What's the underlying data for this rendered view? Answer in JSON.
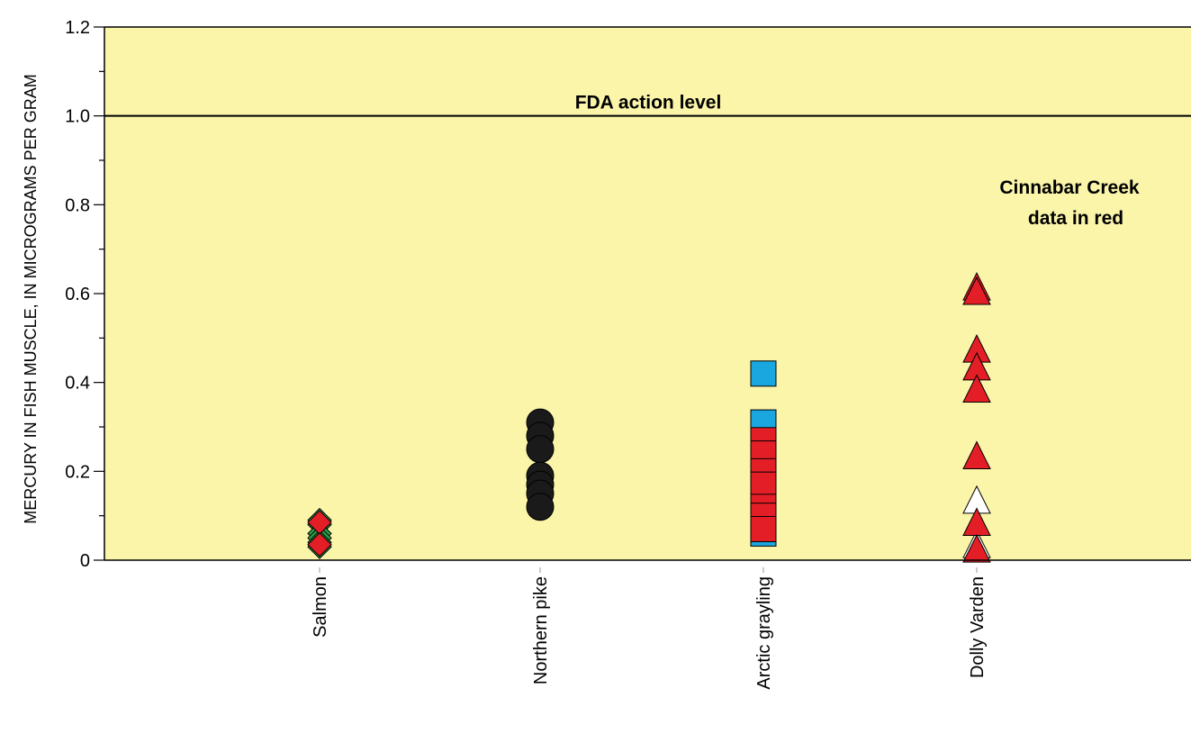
{
  "chart_data": {
    "type": "scatter",
    "ylabel": "MERCURY IN FISH MUSCLE, IN MICROGRAMS PER GRAM",
    "xlabel": "",
    "ylim": [
      0,
      1.2
    ],
    "y_ticks": [
      "0",
      "0.2",
      "0.4",
      "0.6",
      "0.8",
      "1.0",
      "1.2"
    ],
    "categories": [
      "Salmon",
      "Northern pike",
      "Arctic grayling",
      "Dolly Varden"
    ],
    "grid": false,
    "background_color": "#fbf5aa",
    "reference_line": {
      "value": 1.0,
      "label": "FDA action level"
    },
    "annotation": {
      "lines": [
        "Cinnabar Creek",
        "data in red"
      ]
    },
    "series": [
      {
        "category": "Salmon",
        "marker": "diamond",
        "points": [
          {
            "y": 0.09,
            "color": "#2e9e48"
          },
          {
            "y": 0.08,
            "color": "#2e9e48"
          },
          {
            "y": 0.06,
            "color": "#2e9e48"
          },
          {
            "y": 0.05,
            "color": "#2e9e48"
          },
          {
            "y": 0.04,
            "color": "#2e9e48"
          },
          {
            "y": 0.03,
            "color": "#2e9e48"
          },
          {
            "y": 0.085,
            "color": "#e41e26"
          },
          {
            "y": 0.035,
            "color": "#e41e26"
          }
        ]
      },
      {
        "category": "Northern pike",
        "marker": "circle",
        "points": [
          {
            "y": 0.31,
            "color": "#1a1a1a"
          },
          {
            "y": 0.28,
            "color": "#1a1a1a"
          },
          {
            "y": 0.25,
            "color": "#1a1a1a"
          },
          {
            "y": 0.19,
            "color": "#1a1a1a"
          },
          {
            "y": 0.17,
            "color": "#1a1a1a"
          },
          {
            "y": 0.15,
            "color": "#1a1a1a"
          },
          {
            "y": 0.12,
            "color": "#1a1a1a"
          }
        ]
      },
      {
        "category": "Arctic grayling",
        "marker": "square",
        "points": [
          {
            "y": 0.42,
            "color": "#1aa7e0"
          },
          {
            "y": 0.31,
            "color": "#1aa7e0"
          },
          {
            "y": 0.15,
            "color": "#1aa7e0"
          },
          {
            "y": 0.14,
            "color": "#1aa7e0"
          },
          {
            "y": 0.06,
            "color": "#1aa7e0"
          },
          {
            "y": 0.27,
            "color": "#e41e26"
          },
          {
            "y": 0.24,
            "color": "#e41e26"
          },
          {
            "y": 0.2,
            "color": "#e41e26"
          },
          {
            "y": 0.17,
            "color": "#e41e26"
          },
          {
            "y": 0.12,
            "color": "#e41e26"
          },
          {
            "y": 0.1,
            "color": "#e41e26"
          },
          {
            "y": 0.07,
            "color": "#e41e26"
          }
        ]
      },
      {
        "category": "Dolly Varden",
        "marker": "triangle",
        "points": [
          {
            "y": 0.13,
            "color": "#ffffff"
          },
          {
            "y": 0.03,
            "color": "#ffffff"
          },
          {
            "y": 0.61,
            "color": "#e41e26"
          },
          {
            "y": 0.6,
            "color": "#e41e26"
          },
          {
            "y": 0.47,
            "color": "#e41e26"
          },
          {
            "y": 0.43,
            "color": "#e41e26"
          },
          {
            "y": 0.38,
            "color": "#e41e26"
          },
          {
            "y": 0.23,
            "color": "#e41e26"
          },
          {
            "y": 0.08,
            "color": "#e41e26"
          },
          {
            "y": 0.02,
            "color": "#e41e26"
          }
        ]
      }
    ]
  }
}
